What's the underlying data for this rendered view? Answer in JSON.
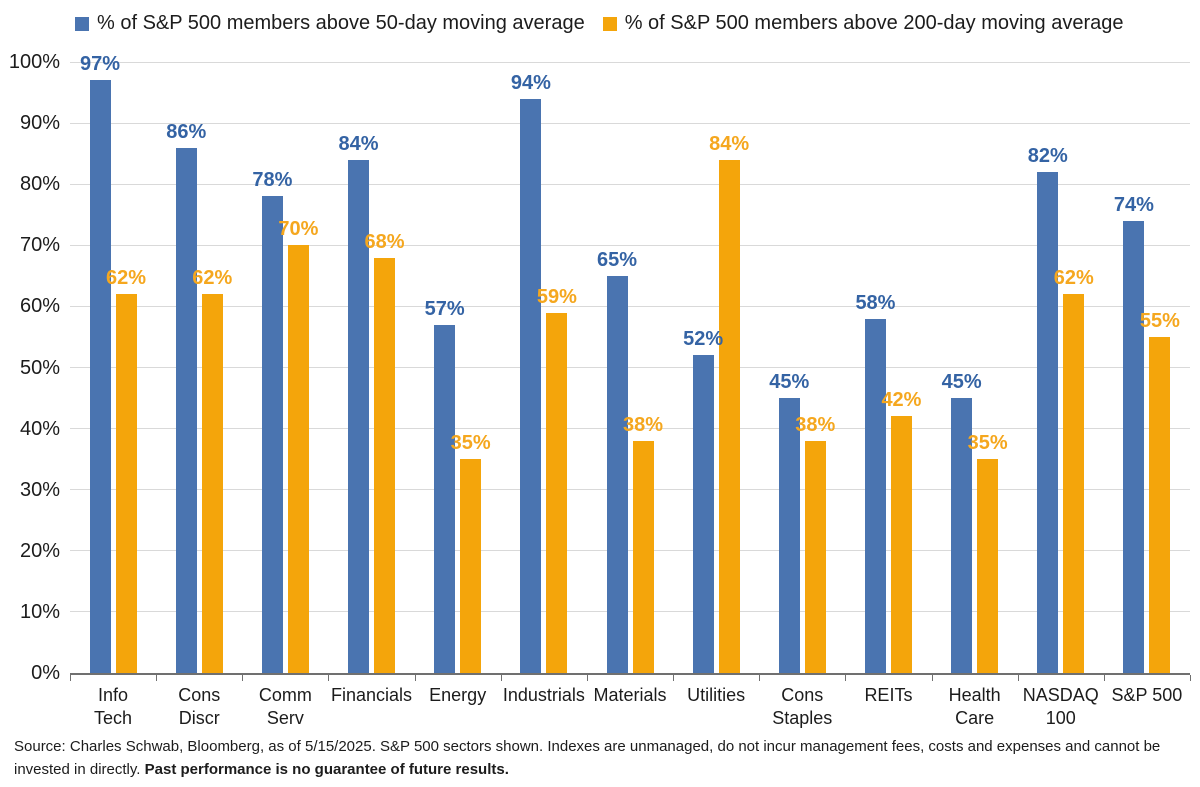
{
  "legend": [
    {
      "label": "% of S&P 500 members above 50-day moving average",
      "color": "#4a74b0"
    },
    {
      "label": "% of S&P 500 members above 200-day moving average",
      "color": "#f4a50b"
    }
  ],
  "chart_data": {
    "type": "bar",
    "title": "",
    "xlabel": "",
    "ylabel": "",
    "ylim": [
      0,
      100
    ],
    "yticks": [
      "0%",
      "10%",
      "20%",
      "30%",
      "40%",
      "50%",
      "60%",
      "70%",
      "80%",
      "90%",
      "100%"
    ],
    "grid": "horizontal",
    "legend_position": "top",
    "categories": [
      "Info Tech",
      "Cons Discr",
      "Comm Serv",
      "Financials",
      "Energy",
      "Industrials",
      "Materials",
      "Utilities",
      "Cons Staples",
      "REITs",
      "Health Care",
      "NASDAQ 100",
      "S&P 500"
    ],
    "category_lines": [
      [
        "Info",
        "Tech"
      ],
      [
        "Cons",
        "Discr"
      ],
      [
        "Comm",
        "Serv"
      ],
      [
        "Financials"
      ],
      [
        "Energy"
      ],
      [
        "Industrials"
      ],
      [
        "Materials"
      ],
      [
        "Utilities"
      ],
      [
        "Cons",
        "Staples"
      ],
      [
        "REITs"
      ],
      [
        "Health",
        "Care"
      ],
      [
        "NASDAQ",
        "100"
      ],
      [
        "S&P 500"
      ]
    ],
    "series": [
      {
        "name": "% of S&P 500 members above 50-day moving average",
        "key": "50day",
        "color": "#4a74b0",
        "label_color": "#3463a4",
        "values": [
          97,
          86,
          78,
          84,
          57,
          94,
          65,
          52,
          45,
          58,
          45,
          82,
          74
        ],
        "labels": [
          "97%",
          "86%",
          "78%",
          "84%",
          "57%",
          "94%",
          "65%",
          "52%",
          "45%",
          "58%",
          "45%",
          "82%",
          "74%"
        ]
      },
      {
        "name": "% of S&P 500 members above 200-day moving average",
        "key": "200day",
        "color": "#f4a50b",
        "label_color": "#f5a71e",
        "values": [
          62,
          62,
          70,
          68,
          35,
          59,
          38,
          84,
          38,
          42,
          35,
          62,
          55
        ],
        "labels": [
          "62%",
          "62%",
          "70%",
          "68%",
          "35%",
          "59%",
          "38%",
          "84%",
          "38%",
          "42%",
          "35%",
          "62%",
          "55%"
        ]
      }
    ]
  },
  "footnote": {
    "text_normal": "Source: Charles Schwab, Bloomberg, as of 5/15/2025. S&P 500 sectors shown. Indexes are unmanaged, do not incur management fees, costs and expenses and cannot be invested in directly. ",
    "text_bold": "Past performance is no guarantee of future results."
  }
}
